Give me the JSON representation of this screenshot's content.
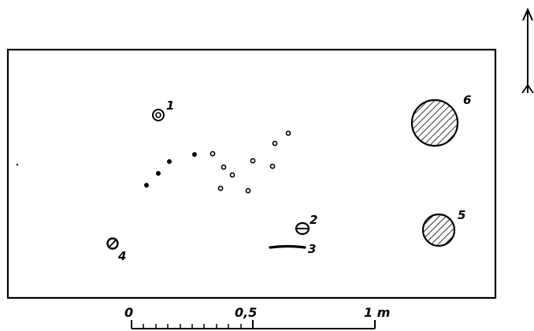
{
  "features": [
    {
      "label": "1",
      "kind": "concentric-ring"
    },
    {
      "label": "2",
      "kind": "theta-circle"
    },
    {
      "label": "3",
      "kind": "line-segment"
    },
    {
      "label": "4",
      "kind": "hatched-small-circle"
    },
    {
      "label": "5",
      "kind": "hatched-circle"
    },
    {
      "label": "6",
      "kind": "hatched-circle"
    }
  ],
  "dots": {
    "filled_count": 4,
    "open_count": 11
  },
  "scale": {
    "labels": [
      "0",
      "0,5",
      "1 m"
    ],
    "min": 0,
    "max": 1,
    "minor_divisions": 10
  },
  "colors": {
    "ink": "#000000",
    "paper": "#ffffff"
  },
  "icons": {
    "north": "north-arrow-icon"
  }
}
